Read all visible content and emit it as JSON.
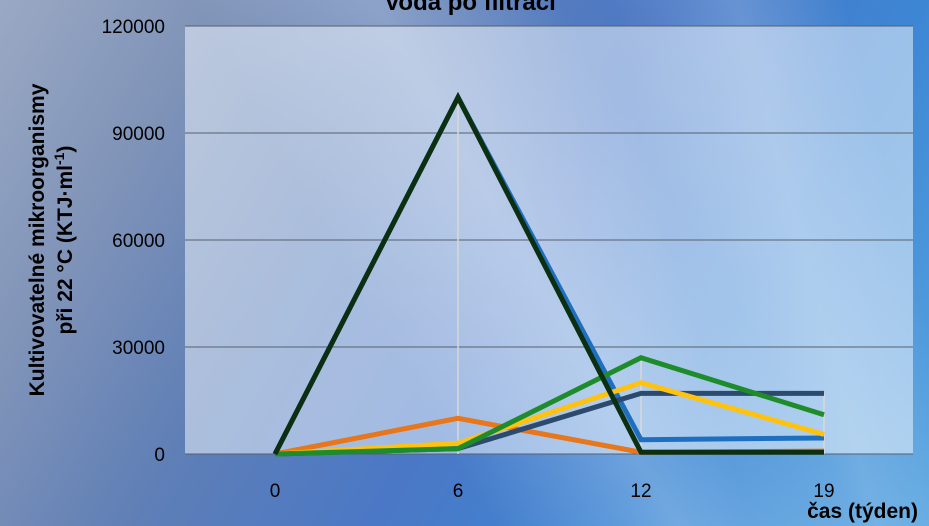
{
  "chart_data": {
    "type": "line",
    "title": "Voda po filtraci",
    "xlabel": "čas (týden)",
    "ylabel_line1": "Kultivovatelné mikroorganismy",
    "ylabel_line2_prefix": "při 22 °C (KTJ·ml",
    "ylabel_sup": "-1",
    "ylabel_line2_suffix": ")",
    "categories": [
      "0",
      "6",
      "12",
      "19"
    ],
    "ylim": [
      0,
      120000
    ],
    "yticks": [
      0,
      30000,
      60000,
      90000,
      120000
    ],
    "ytick_labels": [
      "0",
      "30000",
      "60000",
      "90000",
      "120000"
    ],
    "grid": true,
    "series": [
      {
        "color": "#1f6fc0",
        "values": [
          0,
          100000,
          4000,
          4500
        ]
      },
      {
        "color": "#e8761a",
        "values": [
          0,
          10000,
          500,
          800
        ]
      },
      {
        "color": "#2c4a6e",
        "values": [
          0,
          1500,
          17000,
          17000
        ]
      },
      {
        "color": "#ffc20e",
        "values": [
          0,
          3000,
          20000,
          5500
        ]
      },
      {
        "color": "#1e8c2a",
        "values": [
          0,
          1500,
          27000,
          11000
        ]
      },
      {
        "color": "#0b2f10",
        "values": [
          0,
          100000,
          500,
          500
        ]
      }
    ]
  }
}
